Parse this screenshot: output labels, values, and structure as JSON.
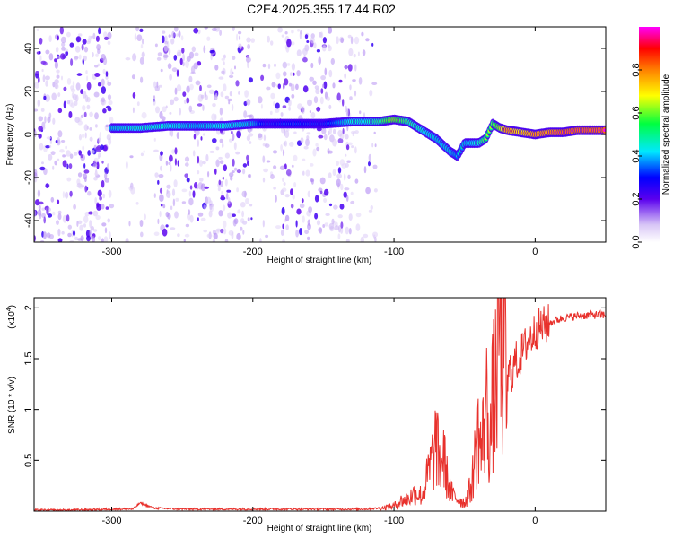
{
  "title": "C2E4.2025.355.17.44.R02",
  "chart_data": [
    {
      "type": "heatmap",
      "title": "C2E4.2025.355.17.44.R02",
      "xlabel": "Height of straight line (km)",
      "ylabel": "Frequency (Hz)",
      "xlim": [
        -355,
        50
      ],
      "ylim": [
        -50,
        50
      ],
      "xticks": [
        -300,
        -200,
        -100,
        0
      ],
      "yticks": [
        -40,
        -20,
        0,
        20,
        40
      ],
      "colorbar": {
        "label": "Normalized spectral amplitude",
        "range": [
          0,
          1
        ],
        "ticks": [
          0.0,
          0.2,
          0.4,
          0.6,
          0.8
        ],
        "colormap": [
          "#e0d0f8",
          "#5500ee",
          "#0000ff",
          "#00e0ff",
          "#00ff40",
          "#ffff00",
          "#ff8000",
          "#ff0000",
          "#ff00ff"
        ]
      },
      "ridge": {
        "x": [
          -300,
          -280,
          -260,
          -240,
          -220,
          -200,
          -190,
          -170,
          -150,
          -130,
          -120,
          -110,
          -100,
          -90,
          -80,
          -70,
          -60,
          -55,
          -50,
          -40,
          -35,
          -30,
          -25,
          -20,
          -10,
          0,
          10,
          20,
          30,
          50
        ],
        "y": [
          3,
          3,
          4,
          4,
          4,
          5,
          5,
          5,
          5,
          6,
          6,
          6,
          7,
          6,
          2,
          -2,
          -8,
          -10,
          -4,
          -4,
          -2,
          5,
          3,
          2,
          1,
          0,
          1,
          1,
          2,
          2
        ],
        "amplitude": [
          0.45,
          0.5,
          0.5,
          0.45,
          0.5,
          0.45,
          0.3,
          0.35,
          0.3,
          0.5,
          0.5,
          0.55,
          0.7,
          0.55,
          0.5,
          0.45,
          0.45,
          0.4,
          0.45,
          0.5,
          0.6,
          0.6,
          0.7,
          0.9,
          0.8,
          0.9,
          0.9,
          0.95,
          0.95,
          0.95
        ]
      }
    },
    {
      "type": "line",
      "xlabel": "Height of straight line (km)",
      "ylabel": "SNR (10 * v/v)",
      "yscale_label": "(x10",
      "yscale_exp": "4",
      "yscale_close": ")",
      "xlim": [
        -355,
        50
      ],
      "ylim": [
        0,
        2.1
      ],
      "xticks": [
        -300,
        -200,
        -100,
        0
      ],
      "yticks": [
        0.5,
        1.0,
        1.5,
        2.0
      ],
      "color": "#e8312c",
      "series": [
        {
          "name": "SNR",
          "x": [
            -355,
            -330,
            -300,
            -285,
            -280,
            -270,
            -250,
            -200,
            -150,
            -120,
            -110,
            -100,
            -95,
            -90,
            -85,
            -80,
            -75,
            -72,
            -70,
            -68,
            -65,
            -62,
            -60,
            -58,
            -55,
            -52,
            -50,
            -48,
            -45,
            -42,
            -40,
            -38,
            -36,
            -34,
            -32,
            -30,
            -28,
            -26,
            -25,
            -24,
            -22,
            -20,
            -18,
            -16,
            -14,
            -12,
            -10,
            -8,
            -6,
            -4,
            -2,
            0,
            5,
            10,
            15,
            20,
            30,
            40,
            50
          ],
          "y": [
            0.01,
            0.01,
            0.02,
            0.02,
            0.08,
            0.03,
            0.02,
            0.02,
            0.02,
            0.02,
            0.03,
            0.05,
            0.1,
            0.12,
            0.18,
            0.15,
            0.4,
            0.55,
            0.7,
            0.45,
            0.55,
            0.3,
            0.2,
            0.15,
            0.12,
            0.1,
            0.08,
            0.15,
            0.25,
            0.6,
            0.8,
            0.55,
            0.9,
            1.05,
            0.65,
            1.1,
            1.25,
            1.6,
            2.1,
            1.4,
            1.55,
            1.2,
            1.4,
            1.35,
            1.5,
            1.45,
            1.55,
            1.6,
            1.65,
            1.7,
            1.72,
            1.78,
            1.82,
            1.85,
            1.88,
            1.9,
            1.92,
            1.93,
            1.93
          ]
        }
      ]
    }
  ]
}
